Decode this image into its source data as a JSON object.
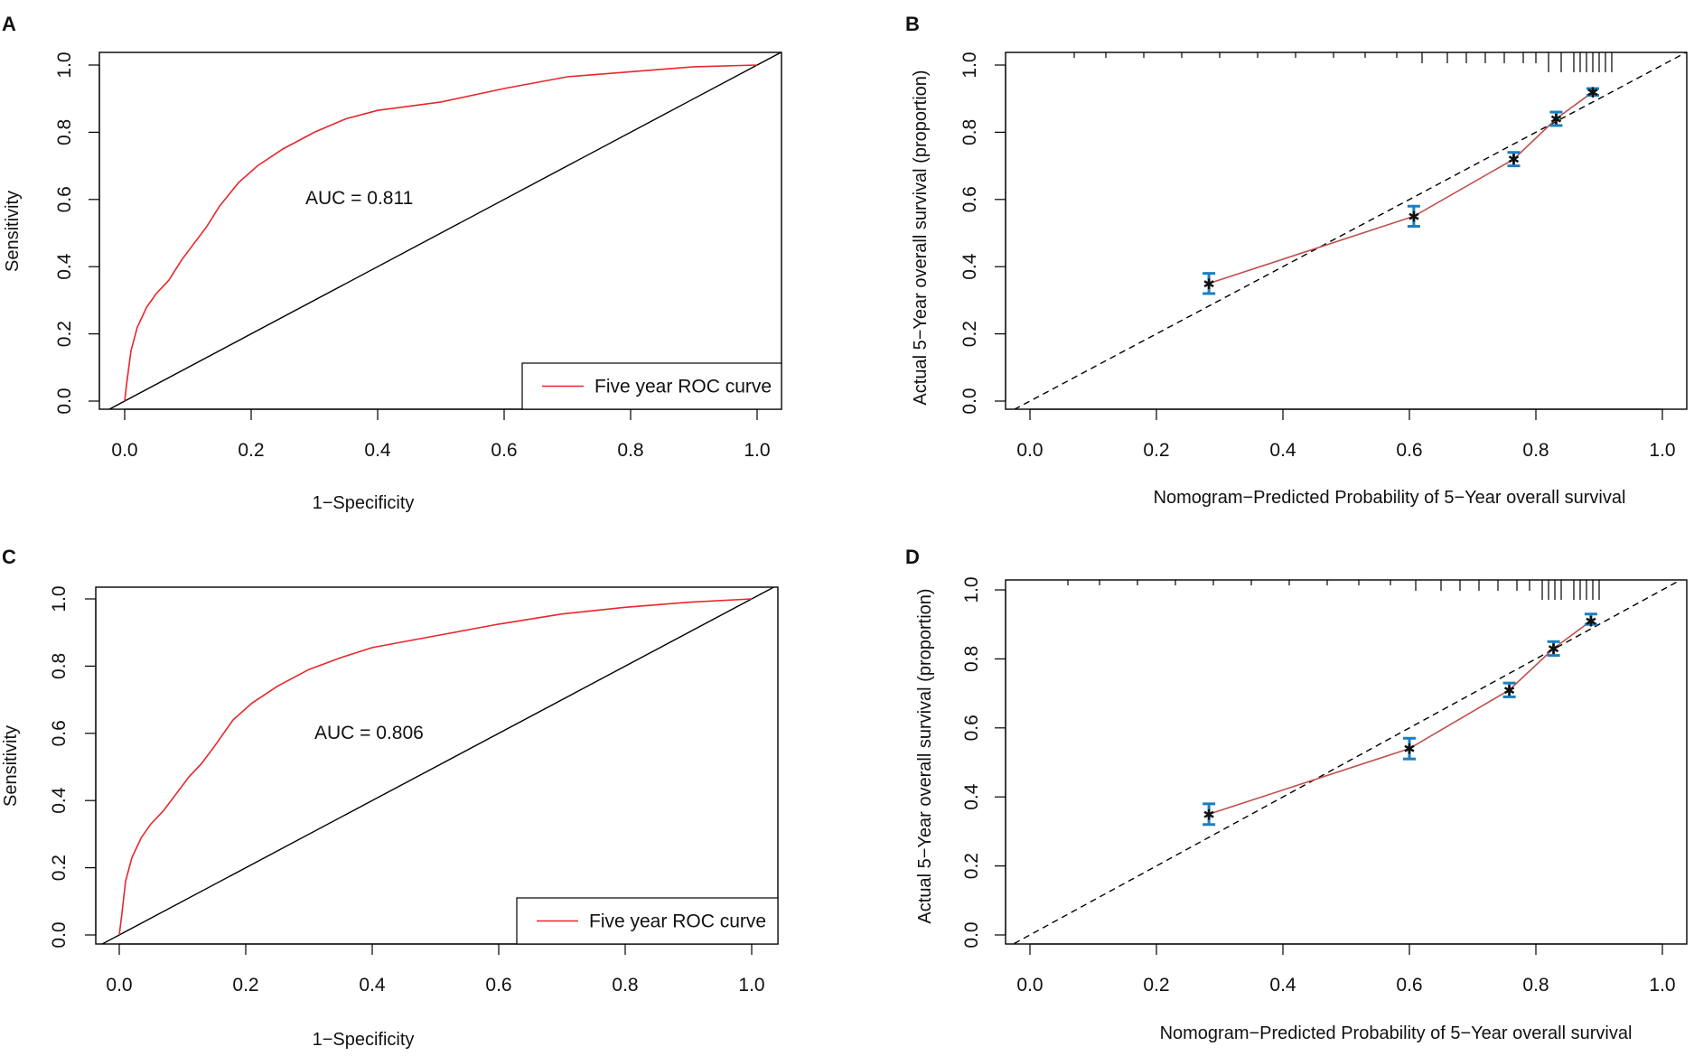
{
  "chart_data": [
    {
      "panel": "A",
      "type": "line",
      "xlabel": "1−Specificity",
      "ylabel": "Sensitivity",
      "xlim": [
        0,
        1
      ],
      "ylim": [
        0,
        1
      ],
      "xticks": [
        "0.0",
        "0.2",
        "0.4",
        "0.6",
        "0.8",
        "1.0"
      ],
      "yticks": [
        "0.0",
        "0.2",
        "0.4",
        "0.6",
        "0.8",
        "1.0"
      ],
      "annotation": "AUC =  0.811",
      "legend": {
        "label": "Five year ROC curve",
        "position": "bottom-right"
      },
      "series": [
        {
          "name": "Five year ROC curve",
          "color": "#e8262b",
          "x": [
            0,
            0.003,
            0.01,
            0.02,
            0.035,
            0.05,
            0.07,
            0.09,
            0.11,
            0.13,
            0.15,
            0.18,
            0.21,
            0.25,
            0.3,
            0.35,
            0.4,
            0.5,
            0.6,
            0.7,
            0.8,
            0.9,
            1.0
          ],
          "y": [
            0,
            0.05,
            0.15,
            0.22,
            0.28,
            0.32,
            0.36,
            0.42,
            0.47,
            0.52,
            0.58,
            0.65,
            0.7,
            0.75,
            0.8,
            0.84,
            0.865,
            0.89,
            0.93,
            0.965,
            0.98,
            0.995,
            1.0
          ]
        },
        {
          "name": "reference",
          "color": "#000000",
          "x": [
            0,
            1
          ],
          "y": [
            0,
            1
          ]
        }
      ]
    },
    {
      "panel": "B",
      "type": "scatter",
      "xlabel": "Nomogram−Predicted Probability of 5−Year overall survival",
      "ylabel": "Actual 5−Year overall survival (proportion)",
      "xlim": [
        0,
        1
      ],
      "ylim": [
        0,
        1
      ],
      "xticks": [
        "0.0",
        "0.2",
        "0.4",
        "0.6",
        "0.8",
        "1.0"
      ],
      "yticks": [
        "0.0",
        "0.2",
        "0.4",
        "0.6",
        "0.8",
        "1.0"
      ],
      "series": [
        {
          "name": "calibration",
          "color": "#c0504d",
          "x": [
            0.283,
            0.607,
            0.765,
            0.832,
            0.89
          ],
          "y": [
            0.35,
            0.55,
            0.72,
            0.84,
            0.92
          ],
          "ci_low": [
            0.32,
            0.52,
            0.7,
            0.82,
            0.91
          ],
          "ci_high": [
            0.38,
            0.58,
            0.74,
            0.86,
            0.93
          ]
        },
        {
          "name": "ideal",
          "color": "#000000",
          "x": [
            0,
            1
          ],
          "y": [
            0,
            1
          ]
        }
      ],
      "rug": [
        0.07,
        0.12,
        0.18,
        0.24,
        0.3,
        0.36,
        0.42,
        0.48,
        0.53,
        0.58,
        0.62,
        0.66,
        0.69,
        0.72,
        0.75,
        0.78,
        0.8,
        0.82,
        0.84,
        0.86,
        0.87,
        0.88,
        0.89,
        0.9,
        0.91,
        0.92
      ]
    },
    {
      "panel": "C",
      "type": "line",
      "xlabel": "1−Specificity",
      "ylabel": "Sensitivity",
      "xlim": [
        0,
        1
      ],
      "ylim": [
        0,
        1
      ],
      "xticks": [
        "0.0",
        "0.2",
        "0.4",
        "0.6",
        "0.8",
        "1.0"
      ],
      "yticks": [
        "0.0",
        "0.2",
        "0.4",
        "0.6",
        "0.8",
        "1.0"
      ],
      "annotation": "AUC =  0.806",
      "legend": {
        "label": "Five year ROC curve",
        "position": "bottom-right"
      },
      "series": [
        {
          "name": "Five year ROC curve",
          "color": "#e8262b",
          "x": [
            0,
            0.004,
            0.01,
            0.02,
            0.035,
            0.05,
            0.07,
            0.09,
            0.11,
            0.13,
            0.15,
            0.18,
            0.21,
            0.25,
            0.3,
            0.35,
            0.4,
            0.5,
            0.6,
            0.7,
            0.8,
            0.9,
            1.0
          ],
          "y": [
            0,
            0.06,
            0.16,
            0.23,
            0.29,
            0.33,
            0.37,
            0.42,
            0.47,
            0.51,
            0.56,
            0.64,
            0.69,
            0.74,
            0.79,
            0.825,
            0.855,
            0.89,
            0.925,
            0.955,
            0.975,
            0.99,
            1.0
          ]
        },
        {
          "name": "reference",
          "color": "#000000",
          "x": [
            0,
            1
          ],
          "y": [
            0,
            1
          ]
        }
      ]
    },
    {
      "panel": "D",
      "type": "scatter",
      "xlabel": "Nomogram−Predicted Probability of 5−Year overall survival",
      "ylabel": "Actual 5−Year overall survival (proportion)",
      "xlim": [
        0,
        1
      ],
      "ylim": [
        0,
        1
      ],
      "xticks": [
        "0.0",
        "0.2",
        "0.4",
        "0.6",
        "0.8",
        "1.0"
      ],
      "yticks": [
        "0.0",
        "0.2",
        "0.4",
        "0.6",
        "0.8",
        "1.0"
      ],
      "series": [
        {
          "name": "calibration",
          "color": "#c0504d",
          "x": [
            0.283,
            0.6,
            0.758,
            0.828,
            0.887
          ],
          "y": [
            0.35,
            0.54,
            0.71,
            0.83,
            0.91
          ],
          "ci_low": [
            0.32,
            0.51,
            0.69,
            0.81,
            0.9
          ],
          "ci_high": [
            0.38,
            0.57,
            0.73,
            0.85,
            0.93
          ]
        },
        {
          "name": "ideal",
          "color": "#000000",
          "x": [
            0,
            1
          ],
          "y": [
            0,
            1
          ]
        }
      ],
      "rug": [
        0.06,
        0.11,
        0.17,
        0.23,
        0.29,
        0.35,
        0.41,
        0.47,
        0.52,
        0.57,
        0.61,
        0.65,
        0.68,
        0.71,
        0.74,
        0.77,
        0.79,
        0.81,
        0.82,
        0.83,
        0.84,
        0.86,
        0.87,
        0.88,
        0.89,
        0.9
      ]
    }
  ],
  "panel_labels": [
    "A",
    "B",
    "C",
    "D"
  ],
  "colors": {
    "roc": "#e8262b",
    "calibration_line": "#c0504d",
    "error_bar": "#1a7fc1",
    "reference": "#000000"
  }
}
